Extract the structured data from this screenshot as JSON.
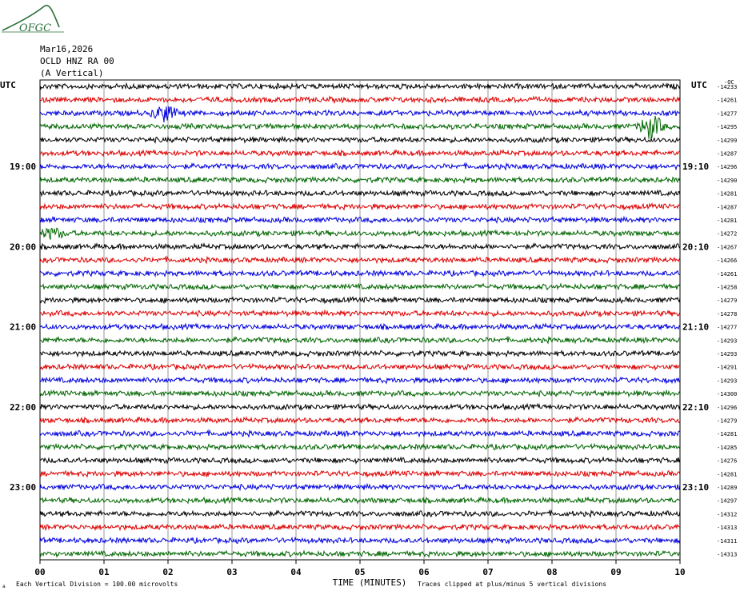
{
  "header": {
    "date": "Mar16,2026",
    "station": "OCLD HNZ RA 00",
    "component": "(A Vertical)",
    "logo_text": "OFGC"
  },
  "footer": {
    "division_note": "Each Vertical Division =  100.00 microvolts",
    "clip_note": "Traces clipped at plus/minus 5 vertical divisions",
    "small_mark": "a"
  },
  "colors": {
    "trace_cycle": [
      "#000000",
      "#dd0000",
      "#0000dd",
      "#006600"
    ],
    "grid": "#808080",
    "frame": "#000000",
    "logo": "#2a6f3a"
  },
  "chart_data": {
    "type": "line",
    "title": "",
    "xlabel": "TIME (MINUTES)",
    "ylabel": "",
    "x_ticks": [
      "00",
      "01",
      "02",
      "03",
      "04",
      "05",
      "06",
      "07",
      "08",
      "09",
      "10"
    ],
    "xlim": [
      0,
      10
    ],
    "left_axis_label": "UTC",
    "right_axis_label": "UTC",
    "right_top_label": "-ОС",
    "left_hour_labels": [
      {
        "row": 6,
        "label": "19:00"
      },
      {
        "row": 12,
        "label": "20:00"
      },
      {
        "row": 18,
        "label": "21:00"
      },
      {
        "row": 24,
        "label": "22:00"
      },
      {
        "row": 30,
        "label": "23:00"
      }
    ],
    "right_hour_labels": [
      {
        "row": 6,
        "label": "19:10"
      },
      {
        "row": 12,
        "label": "20:10"
      },
      {
        "row": 18,
        "label": "21:10"
      },
      {
        "row": 24,
        "label": "22:10"
      },
      {
        "row": 30,
        "label": "23:10"
      }
    ],
    "trace_offsets": [
      "-14233",
      "-14261",
      "-14277",
      "-14295",
      "-14299",
      "-14287",
      "-14296",
      "-14290",
      "-14281",
      "-14287",
      "-14281",
      "-14272",
      "-14267",
      "-14266",
      "-14261",
      "-14258",
      "-14279",
      "-14278",
      "-14277",
      "-14293",
      "-14293",
      "-14291",
      "-14293",
      "-14300",
      "-14296",
      "-14279",
      "-14281",
      "-14285",
      "-14276",
      "-14281",
      "-14289",
      "-14297",
      "-14312",
      "-14313",
      "-14311",
      "-14313"
    ],
    "events": [
      {
        "row": 2,
        "x_minutes": 1.95,
        "amplitude_divisions": 3.2
      },
      {
        "row": 3,
        "x_minutes": 9.55,
        "amplitude_divisions": 4.5
      },
      {
        "row": 11,
        "x_minutes": 0.2,
        "amplitude_divisions": 2.0
      }
    ],
    "background_noise_divisions": 1.0,
    "grid": true
  }
}
